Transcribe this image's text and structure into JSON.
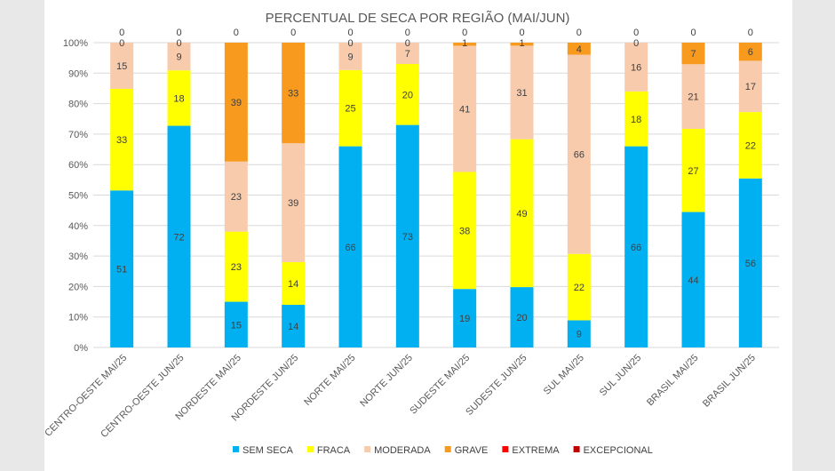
{
  "chart_data": {
    "type": "bar",
    "stacked": "percent",
    "title": "PERCENTUAL DE SECA POR REGIÃO (MAI/JUN)",
    "xlabel": "",
    "ylabel": "",
    "ylim": [
      0,
      100
    ],
    "yticks": [
      "0%",
      "10%",
      "20%",
      "30%",
      "40%",
      "50%",
      "60%",
      "70%",
      "80%",
      "90%",
      "100%"
    ],
    "grid": true,
    "legend_position": "bottom",
    "categories": [
      "CENTRO-OESTE MAI/25",
      "CENTRO-OESTE JUN/25",
      "NORDESTE MAI/25",
      "NORDESTE JUN/25",
      "NORTE MAI/25",
      "NORTE JUN/25",
      "SUDESTE MAI/25",
      "SUDESTE JUN/25",
      "SUL MAI/25",
      "SUL JUN/25",
      "BRASIL MAI/25",
      "BRASIL JUN/25"
    ],
    "series": [
      {
        "name": "SEM SECA",
        "color": "#00B0F0",
        "values": [
          51,
          72,
          15,
          14,
          66,
          73,
          19,
          20,
          9,
          66,
          44,
          56
        ]
      },
      {
        "name": "FRACA",
        "color": "#FFFF00",
        "values": [
          33,
          18,
          23,
          14,
          25,
          20,
          38,
          49,
          22,
          18,
          27,
          22
        ]
      },
      {
        "name": "MODERADA",
        "color": "#F8CBAD",
        "values": [
          15,
          9,
          23,
          39,
          9,
          7,
          41,
          31,
          66,
          16,
          21,
          17
        ]
      },
      {
        "name": "GRAVE",
        "color": "#F79A1E",
        "values": [
          0,
          0,
          39,
          33,
          0,
          0,
          1,
          1,
          4,
          0,
          7,
          6
        ]
      },
      {
        "name": "EXTREMA",
        "color": "#FF0000",
        "values": [
          0,
          0,
          0,
          0,
          0,
          0,
          0,
          0,
          0,
          0,
          0,
          0
        ]
      },
      {
        "name": "EXCEPCIONAL",
        "color": "#C00000",
        "values": [
          0,
          0,
          0,
          0,
          0,
          0,
          0,
          0,
          0,
          0,
          0,
          0
        ]
      }
    ]
  }
}
